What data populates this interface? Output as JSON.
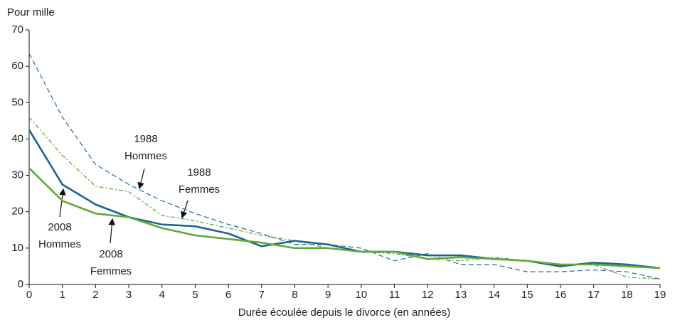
{
  "chart_data": {
    "type": "line",
    "y_axis_label": "Pour mille",
    "x_axis_label": "Durée écoulée depuis le divorce (en années)",
    "x": [
      0,
      1,
      2,
      3,
      4,
      5,
      6,
      7,
      8,
      9,
      10,
      11,
      12,
      13,
      14,
      15,
      16,
      17,
      18,
      19
    ],
    "xlim": [
      0,
      19
    ],
    "xticks": [
      0,
      1,
      2,
      3,
      4,
      5,
      6,
      7,
      8,
      9,
      10,
      11,
      12,
      13,
      14,
      15,
      16,
      17,
      18,
      19
    ],
    "ylim": [
      0,
      70
    ],
    "yticks": [
      0,
      10,
      20,
      30,
      40,
      50,
      60,
      70
    ],
    "grid": false,
    "series": [
      {
        "name": "1988 Hommes",
        "color": "#1f6f98",
        "style": "dashed",
        "values": [
          63.5,
          46,
          33,
          27.5,
          23,
          19.5,
          16.5,
          14,
          11,
          11,
          10,
          6.5,
          8.5,
          5.5,
          5.5,
          3.5,
          3.5,
          4,
          3.5,
          1.5
        ]
      },
      {
        "name": "1988 Femmes",
        "color": "#5a9e2f",
        "style": "dashdot",
        "values": [
          46,
          35.5,
          27,
          25.5,
          19,
          17.5,
          15.5,
          13.5,
          12,
          10,
          9,
          8.5,
          7,
          6.5,
          7.5,
          6.5,
          5.5,
          5.5,
          2,
          1.5
        ]
      },
      {
        "name": "2008 Hommes",
        "color": "#1a6690",
        "style": "solid",
        "values": [
          42.5,
          27.5,
          22,
          18.5,
          16.5,
          16,
          14,
          10.5,
          12,
          11,
          9,
          9,
          8,
          8,
          7,
          6.5,
          5,
          6,
          5.5,
          4.5
        ]
      },
      {
        "name": "2008 Femmes",
        "color": "#63a83a",
        "style": "solid",
        "values": [
          32,
          23,
          19.5,
          18.5,
          15.5,
          13.5,
          12.5,
          11.5,
          10,
          10,
          9,
          9,
          7,
          7.5,
          7,
          6.5,
          5.5,
          5.5,
          5,
          4.5
        ]
      }
    ],
    "annotations": [
      {
        "lines": [
          "1988",
          "Hommes"
        ]
      },
      {
        "lines": [
          "1988",
          "Femmes"
        ]
      },
      {
        "lines": [
          "2008",
          "Hommes"
        ]
      },
      {
        "lines": [
          "2008",
          "Femmes"
        ]
      }
    ]
  }
}
